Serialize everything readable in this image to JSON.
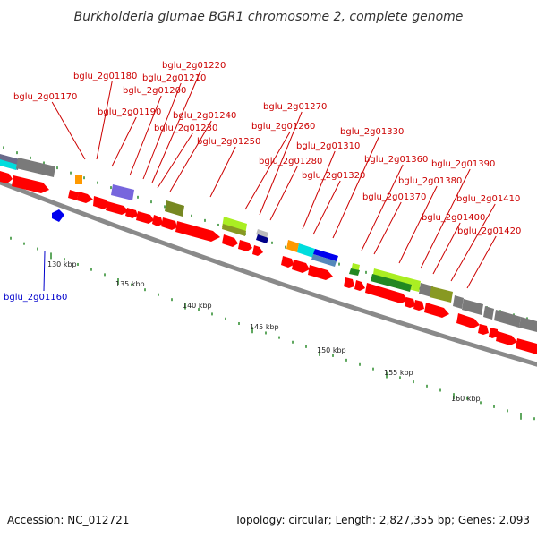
{
  "title": "Burkholderia glumae BGR1 chromosome 2, complete genome",
  "accession_text": "Accession: NC_012721",
  "topology_text": "Topology: circular; Length: 2,827,355 bp; Genes: 2,093",
  "colors": {
    "backbone": "#8a8a8a",
    "cds_red": "#ff0000",
    "green_tick": "#2a8a2a",
    "label_red": "#cc0000",
    "label_blue": "#0000cc"
  },
  "scale_labels": [
    "130 kbp",
    "135 kbp",
    "140 kbp",
    "145 kbp",
    "150 kbp",
    "155 kbp",
    "160 kbp"
  ],
  "gene_labels": [
    {
      "text": "bglu_2g01160",
      "color": "#0000cc"
    },
    {
      "text": "bglu_2g01170",
      "color": "#cc0000"
    },
    {
      "text": "bglu_2g01180",
      "color": "#cc0000"
    },
    {
      "text": "bglu_2g01190",
      "color": "#cc0000"
    },
    {
      "text": "bglu_2g01200",
      "color": "#cc0000"
    },
    {
      "text": "bglu_2g01210",
      "color": "#cc0000"
    },
    {
      "text": "bglu_2g01220",
      "color": "#cc0000"
    },
    {
      "text": "bglu_2g01230",
      "color": "#cc0000"
    },
    {
      "text": "bglu_2g01240",
      "color": "#cc0000"
    },
    {
      "text": "bglu_2g01250",
      "color": "#cc0000"
    },
    {
      "text": "bglu_2g01260",
      "color": "#cc0000"
    },
    {
      "text": "bglu_2g01270",
      "color": "#cc0000"
    },
    {
      "text": "bglu_2g01280",
      "color": "#cc0000"
    },
    {
      "text": "bglu_2g01310",
      "color": "#cc0000"
    },
    {
      "text": "bglu_2g01320",
      "color": "#cc0000"
    },
    {
      "text": "bglu_2g01330",
      "color": "#cc0000"
    },
    {
      "text": "bglu_2g01360",
      "color": "#cc0000"
    },
    {
      "text": "bglu_2g01370",
      "color": "#cc0000"
    },
    {
      "text": "bglu_2g01380",
      "color": "#cc0000"
    },
    {
      "text": "bglu_2g01390",
      "color": "#cc0000"
    },
    {
      "text": "bglu_2g01400",
      "color": "#cc0000"
    },
    {
      "text": "bglu_2g01410",
      "color": "#cc0000"
    },
    {
      "text": "bglu_2g01420",
      "color": "#cc0000"
    }
  ]
}
